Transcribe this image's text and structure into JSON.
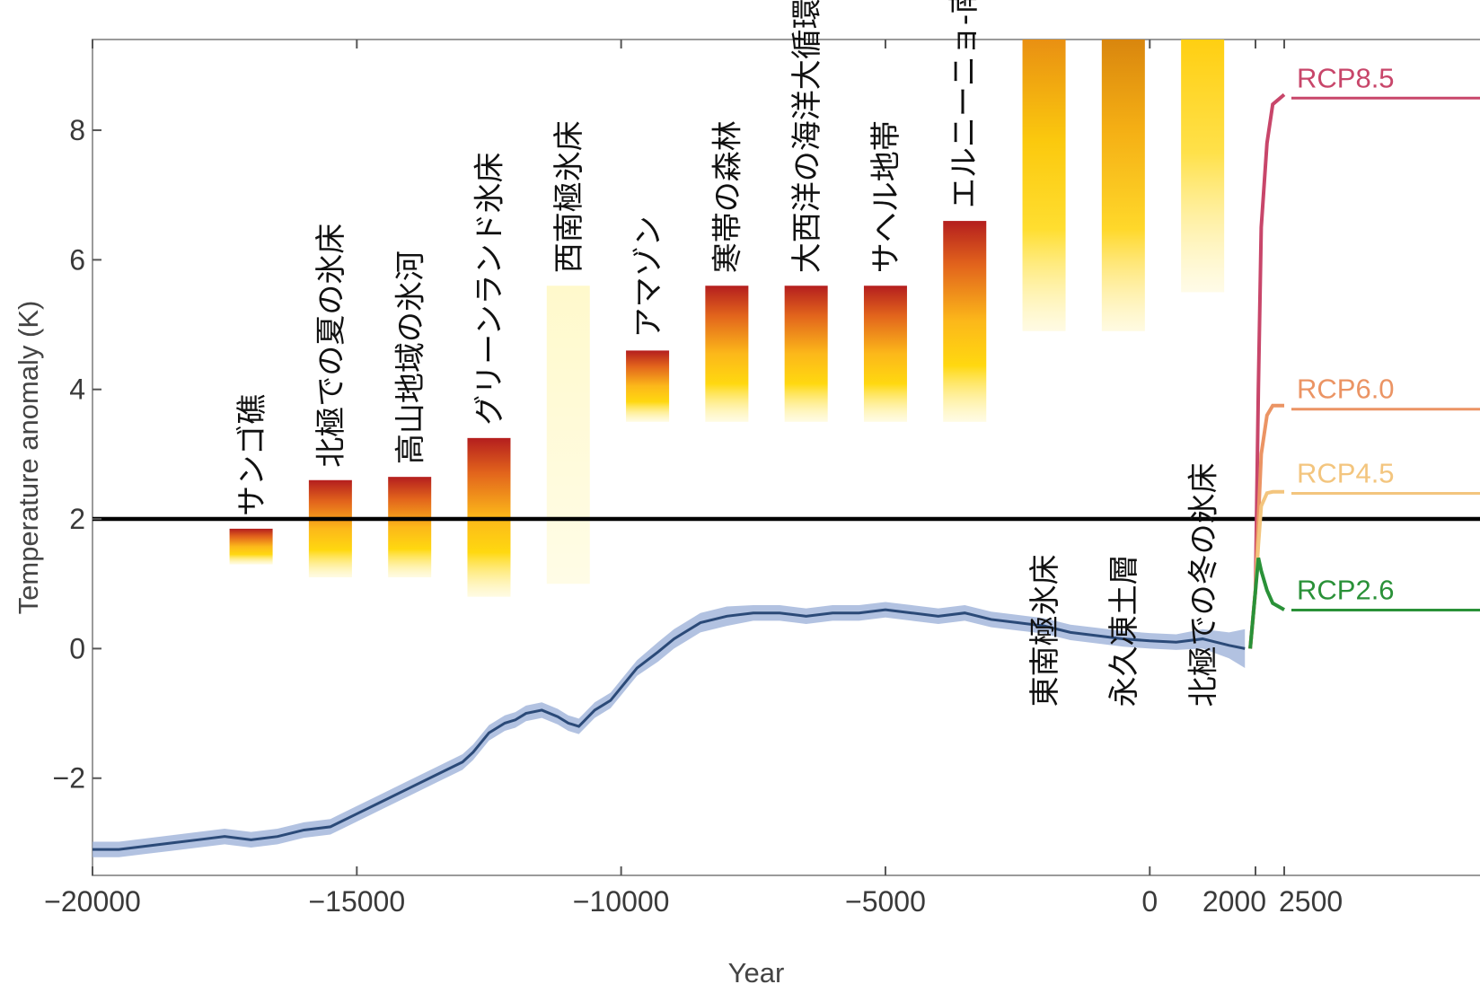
{
  "chart_data": {
    "type": "line",
    "xlabel": "Year",
    "ylabel": "Temperature anomaly (K)",
    "xlim": [
      -20000,
      4700
    ],
    "ylim": [
      -3.5,
      9.4
    ],
    "grid": false,
    "x_axis_break": 2000,
    "x_ticks": [
      {
        "value": -20000,
        "label": "−20000"
      },
      {
        "value": -15000,
        "label": "−15000"
      },
      {
        "value": -10000,
        "label": "−10000"
      },
      {
        "value": -5000,
        "label": "−5000"
      },
      {
        "value": 0,
        "label": "0"
      },
      {
        "value": 2000,
        "label": "2000"
      },
      {
        "value": 2500,
        "label": "2500"
      }
    ],
    "y_ticks": [
      {
        "value": -2,
        "label": "−2"
      },
      {
        "value": 0,
        "label": "0"
      },
      {
        "value": 2,
        "label": "2"
      },
      {
        "value": 4,
        "label": "4"
      },
      {
        "value": 6,
        "label": "6"
      },
      {
        "value": 8,
        "label": "8"
      }
    ],
    "threshold_line": {
      "y": 2,
      "color": "#000000"
    },
    "series": [
      {
        "color": "#2b4a78",
        "band_color": "#9fb3d9",
        "x": [
          -20000,
          -19500,
          -19000,
          -18500,
          -18000,
          -17500,
          -17000,
          -16500,
          -16000,
          -15500,
          -15000,
          -14500,
          -14000,
          -13500,
          -13000,
          -12800,
          -12500,
          -12200,
          -12000,
          -11800,
          -11500,
          -11200,
          -11000,
          -10800,
          -10500,
          -10200,
          -10000,
          -9700,
          -9300,
          -9000,
          -8500,
          -8000,
          -7500,
          -7000,
          -6500,
          -6000,
          -5500,
          -5000,
          -4500,
          -4000,
          -3500,
          -3000,
          -2500,
          -2000,
          -1500,
          -1000,
          -500,
          0,
          500,
          1000,
          1500,
          1800
        ],
        "y": [
          -3.1,
          -3.1,
          -3.05,
          -3.0,
          -2.95,
          -2.9,
          -2.95,
          -2.9,
          -2.8,
          -2.75,
          -2.55,
          -2.35,
          -2.15,
          -1.95,
          -1.75,
          -1.6,
          -1.3,
          -1.15,
          -1.1,
          -1.0,
          -0.95,
          -1.05,
          -1.15,
          -1.2,
          -0.95,
          -0.8,
          -0.6,
          -0.3,
          -0.05,
          0.15,
          0.4,
          0.5,
          0.55,
          0.55,
          0.5,
          0.55,
          0.55,
          0.6,
          0.55,
          0.5,
          0.55,
          0.45,
          0.4,
          0.35,
          0.25,
          0.2,
          0.15,
          0.12,
          0.1,
          0.15,
          0.05,
          0.0
        ],
        "band": [
          0.12,
          0.12,
          0.12,
          0.12,
          0.12,
          0.12,
          0.12,
          0.12,
          0.12,
          0.12,
          0.12,
          0.12,
          0.12,
          0.12,
          0.12,
          0.12,
          0.12,
          0.12,
          0.12,
          0.12,
          0.12,
          0.12,
          0.12,
          0.12,
          0.12,
          0.12,
          0.12,
          0.12,
          0.15,
          0.15,
          0.15,
          0.15,
          0.12,
          0.12,
          0.12,
          0.12,
          0.12,
          0.12,
          0.12,
          0.12,
          0.12,
          0.12,
          0.12,
          0.12,
          0.12,
          0.12,
          0.12,
          0.12,
          0.12,
          0.15,
          0.2,
          0.3
        ]
      },
      {
        "name": "RCP8.5",
        "color": "#c8466a",
        "x": [
          1900,
          2000,
          2050,
          2100,
          2200,
          2300,
          2500
        ],
        "y": [
          0.0,
          0.9,
          4.0,
          6.5,
          7.8,
          8.4,
          8.55
        ],
        "label_y": 8.8
      },
      {
        "name": "RCP6.0",
        "color": "#eb9464",
        "x": [
          1900,
          2000,
          2050,
          2100,
          2200,
          2300,
          2500
        ],
        "y": [
          0.0,
          0.9,
          2.0,
          3.0,
          3.6,
          3.75,
          3.75
        ],
        "label_y": 4.0
      },
      {
        "name": "RCP4.5",
        "color": "#f3c57e",
        "x": [
          1900,
          2000,
          2050,
          2100,
          2200,
          2300,
          2500
        ],
        "y": [
          0.0,
          0.9,
          1.6,
          2.2,
          2.4,
          2.42,
          2.42
        ],
        "label_y": 2.7
      },
      {
        "name": "RCP2.6",
        "color": "#2a9138",
        "x": [
          1900,
          2000,
          2050,
          2100,
          2200,
          2300,
          2500
        ],
        "y": [
          0.0,
          0.9,
          1.4,
          1.2,
          0.9,
          0.7,
          0.6
        ],
        "label_y": 0.9
      }
    ],
    "tipping_points": [
      {
        "label": "サンゴ礁",
        "x": -17000,
        "bottom": 1.3,
        "top": 1.85
      },
      {
        "label": "北極での夏の氷床",
        "x": -15500,
        "bottom": 1.1,
        "top": 2.6
      },
      {
        "label": "高山地域の氷河",
        "x": -14000,
        "bottom": 1.1,
        "top": 2.65
      },
      {
        "label": "グリーンランド氷床",
        "x": -12500,
        "bottom": 0.8,
        "top": 3.25
      },
      {
        "label": "西南極氷床",
        "x": -11000,
        "bottom": 1.0,
        "top": 5.6
      },
      {
        "label": "アマゾン",
        "x": -9500,
        "bottom": 3.5,
        "top": 4.6
      },
      {
        "label": "寒帯の森林",
        "x": -8000,
        "bottom": 3.5,
        "top": 5.6
      },
      {
        "label": "大西洋の海洋大循環",
        "x": -6500,
        "bottom": 3.5,
        "top": 5.6
      },
      {
        "label": "サヘル地帯",
        "x": -5000,
        "bottom": 3.5,
        "top": 5.6
      },
      {
        "label": "エルニーニョ-南方振動",
        "x": -3500,
        "bottom": 3.5,
        "top": 6.6
      },
      {
        "label": "東南極氷床",
        "x": -2000,
        "bottom": 4.9,
        "top": 9.4
      },
      {
        "label": "永久凍土層",
        "x": -500,
        "bottom": 4.9,
        "top": 9.4
      },
      {
        "label": "北極での冬の氷床",
        "x": 1000,
        "bottom": 5.5,
        "top": 9.4
      }
    ]
  }
}
